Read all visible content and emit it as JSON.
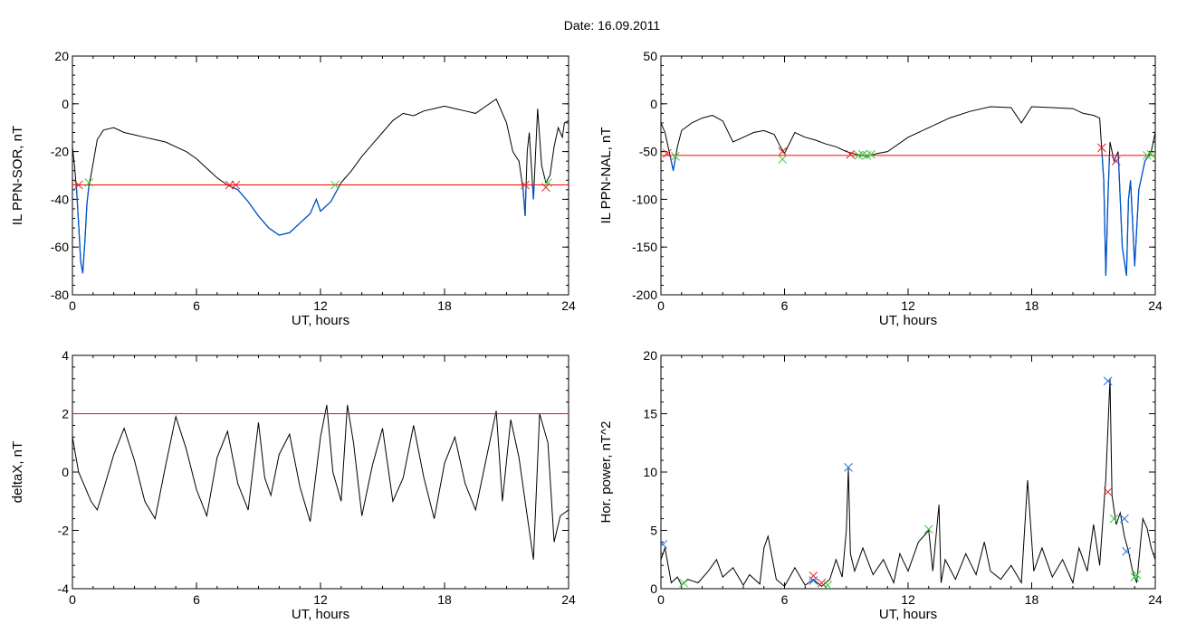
{
  "page_title": "Date:  16.09.2011",
  "colors": {
    "axis": "#000000",
    "line": "#000000",
    "threshold": "#ff0000",
    "below": "#0055cc",
    "marker_red": "#e02020",
    "marker_green": "#33cc33",
    "marker_blue": "#2277dd"
  },
  "chart_data": [
    {
      "id": "sor",
      "type": "line",
      "ylabel": "IL PPN-SOR, nT",
      "xlabel": "UT, hours",
      "xlim": [
        0,
        24
      ],
      "ylim": [
        -80,
        20
      ],
      "xticks": [
        0,
        6,
        12,
        18,
        24
      ],
      "yticks": [
        20,
        0,
        -20,
        -40,
        -60,
        -80
      ],
      "threshold": -34,
      "below_color": "#0055cc",
      "x": [
        0,
        0.1,
        0.2,
        0.3,
        0.4,
        0.5,
        0.6,
        0.7,
        0.8,
        0.9,
        1.0,
        1.2,
        1.5,
        2,
        2.5,
        3,
        3.5,
        4,
        4.5,
        5,
        5.5,
        6,
        6.5,
        7,
        7.5,
        8,
        8.5,
        9,
        9.5,
        10,
        10.5,
        11,
        11.5,
        11.8,
        12,
        12.5,
        13,
        13.5,
        14,
        14.5,
        15,
        15.5,
        16,
        16.5,
        17,
        17.5,
        18,
        18.5,
        19,
        19.5,
        20,
        20.5,
        21,
        21.3,
        21.6,
        21.8,
        21.9,
        22.0,
        22.1,
        22.3,
        22.5,
        22.7,
        22.9,
        23.1,
        23.3,
        23.5,
        23.7,
        23.8,
        24
      ],
      "y": [
        -18,
        -26,
        -36,
        -50,
        -66,
        -71,
        -58,
        -42,
        -34,
        -30,
        -25,
        -15,
        -11,
        -10,
        -12,
        -13,
        -14,
        -15,
        -16,
        -18,
        -20,
        -23,
        -27,
        -31,
        -34,
        -36,
        -41,
        -47,
        -52,
        -55,
        -54,
        -50,
        -46,
        -40,
        -45,
        -41,
        -33,
        -28,
        -22,
        -17,
        -12,
        -7,
        -4,
        -5,
        -3,
        -2,
        -1,
        -2,
        -3,
        -4,
        -1,
        2,
        -8,
        -20,
        -24,
        -36,
        -47,
        -20,
        -12,
        -40,
        -2,
        -26,
        -33,
        -30,
        -18,
        -10,
        -14,
        -8,
        -7
      ],
      "markers": [
        {
          "x": 0.3,
          "y": -34,
          "c": "red"
        },
        {
          "x": 0.8,
          "y": -33,
          "c": "green"
        },
        {
          "x": 7.6,
          "y": -34,
          "c": "red"
        },
        {
          "x": 7.9,
          "y": -34,
          "c": "red"
        },
        {
          "x": 12.7,
          "y": -34,
          "c": "green"
        },
        {
          "x": 21.9,
          "y": -34,
          "c": "red"
        },
        {
          "x": 22.9,
          "y": -35,
          "c": "red"
        },
        {
          "x": 23.0,
          "y": -33,
          "c": "green"
        }
      ]
    },
    {
      "id": "nal",
      "type": "line",
      "ylabel": "IL PPN-NAL, nT",
      "xlabel": "UT, hours",
      "xlim": [
        0,
        24
      ],
      "ylim": [
        -200,
        50
      ],
      "xticks": [
        0,
        6,
        12,
        18,
        24
      ],
      "yticks": [
        50,
        0,
        -50,
        -100,
        -150,
        -200
      ],
      "threshold": -54,
      "below_color": "#0055cc",
      "x": [
        0,
        0.2,
        0.4,
        0.6,
        0.8,
        1.0,
        1.5,
        2,
        2.5,
        3,
        3.5,
        4,
        4.5,
        5,
        5.5,
        5.8,
        6,
        6.5,
        7,
        7.5,
        8,
        8.5,
        9,
        9.5,
        10,
        10.5,
        11,
        12,
        13,
        14,
        15,
        16,
        17,
        17.5,
        18,
        19,
        20,
        20.5,
        21,
        21.3,
        21.5,
        21.6,
        21.7,
        21.8,
        22.0,
        22.2,
        22.4,
        22.6,
        22.7,
        22.8,
        23.0,
        23.2,
        23.5,
        23.8,
        24
      ],
      "y": [
        -20,
        -30,
        -50,
        -70,
        -45,
        -28,
        -20,
        -15,
        -12,
        -18,
        -40,
        -35,
        -30,
        -28,
        -32,
        -45,
        -52,
        -30,
        -35,
        -38,
        -42,
        -45,
        -50,
        -53,
        -55,
        -52,
        -50,
        -35,
        -25,
        -15,
        -8,
        -3,
        -4,
        -20,
        -3,
        -4,
        -5,
        -10,
        -12,
        -15,
        -80,
        -180,
        -100,
        -40,
        -60,
        -50,
        -150,
        -180,
        -100,
        -80,
        -170,
        -90,
        -60,
        -50,
        -30
      ],
      "markers": [
        {
          "x": 0.3,
          "y": -52,
          "c": "red"
        },
        {
          "x": 0.7,
          "y": -55,
          "c": "green"
        },
        {
          "x": 5.9,
          "y": -50,
          "c": "red"
        },
        {
          "x": 5.9,
          "y": -58,
          "c": "green"
        },
        {
          "x": 9.2,
          "y": -53,
          "c": "red"
        },
        {
          "x": 9.6,
          "y": -54,
          "c": "green"
        },
        {
          "x": 9.8,
          "y": -53,
          "c": "green"
        },
        {
          "x": 10.0,
          "y": -54,
          "c": "green"
        },
        {
          "x": 10.2,
          "y": -53,
          "c": "green"
        },
        {
          "x": 21.4,
          "y": -46,
          "c": "red"
        },
        {
          "x": 22.1,
          "y": -60,
          "c": "red"
        },
        {
          "x": 23.6,
          "y": -54,
          "c": "green"
        },
        {
          "x": 23.8,
          "y": -53,
          "c": "green"
        }
      ]
    },
    {
      "id": "deltax",
      "type": "line",
      "ylabel": "deltaX, nT",
      "xlabel": "UT, hours",
      "xlim": [
        0,
        24
      ],
      "ylim": [
        -4,
        4
      ],
      "xticks": [
        0,
        6,
        12,
        18,
        24
      ],
      "yticks": [
        4,
        2,
        0,
        -2,
        -4
      ],
      "threshold": 2,
      "below_color": null,
      "x": [
        0,
        0.3,
        0.6,
        0.9,
        1.2,
        1.5,
        2.0,
        2.5,
        3.0,
        3.5,
        4.0,
        4.5,
        5.0,
        5.5,
        6.0,
        6.5,
        7.0,
        7.5,
        8.0,
        8.5,
        9.0,
        9.3,
        9.6,
        10.0,
        10.5,
        11.0,
        11.5,
        12.0,
        12.3,
        12.6,
        13.0,
        13.3,
        13.6,
        14.0,
        14.5,
        15.0,
        15.5,
        16.0,
        16.5,
        17.0,
        17.5,
        18.0,
        18.5,
        19.0,
        19.5,
        20.0,
        20.5,
        20.8,
        21.2,
        21.6,
        22.0,
        22.3,
        22.6,
        23.0,
        23.3,
        23.6,
        24
      ],
      "y": [
        1.2,
        0,
        -0.5,
        -1.0,
        -1.3,
        -0.6,
        0.6,
        1.5,
        0.4,
        -1.0,
        -1.6,
        0.2,
        1.9,
        0.8,
        -0.6,
        -1.5,
        0.5,
        1.4,
        -0.4,
        -1.3,
        1.7,
        -0.2,
        -0.8,
        0.6,
        1.3,
        -0.5,
        -1.7,
        1.2,
        2.3,
        0,
        -1.0,
        2.3,
        1.0,
        -1.5,
        0.2,
        1.5,
        -1.0,
        -0.2,
        1.6,
        -0.2,
        -1.6,
        0.3,
        1.2,
        -0.4,
        -1.3,
        0.4,
        2.1,
        -1.0,
        1.8,
        0.5,
        -1.5,
        -3.0,
        2.0,
        1.0,
        -2.4,
        -1.5,
        -1.3
      ],
      "markers": []
    },
    {
      "id": "power",
      "type": "line",
      "ylabel": "Hor. power, nT^2",
      "xlabel": "UT, hours",
      "xlim": [
        0,
        24
      ],
      "ylim": [
        0,
        20
      ],
      "xticks": [
        0,
        6,
        12,
        18,
        24
      ],
      "yticks": [
        20,
        15,
        10,
        5,
        0
      ],
      "threshold": null,
      "below_color": null,
      "x": [
        0,
        0.2,
        0.5,
        0.8,
        1.0,
        1.3,
        1.8,
        2.3,
        2.7,
        3.0,
        3.5,
        4.0,
        4.3,
        4.8,
        5.0,
        5.2,
        5.6,
        6.0,
        6.5,
        7.0,
        7.4,
        7.8,
        8.2,
        8.5,
        8.8,
        9.0,
        9.1,
        9.2,
        9.4,
        9.8,
        10.3,
        10.8,
        11.3,
        11.6,
        12.0,
        12.5,
        13.0,
        13.2,
        13.5,
        13.6,
        13.8,
        14.3,
        14.8,
        15.3,
        15.7,
        16.0,
        16.5,
        17.0,
        17.5,
        17.8,
        18.1,
        18.5,
        19.0,
        19.5,
        20.0,
        20.3,
        20.7,
        21.0,
        21.3,
        21.6,
        21.8,
        21.9,
        22.1,
        22.3,
        22.5,
        22.7,
        22.9,
        23.1,
        23.4,
        23.6,
        23.8,
        24
      ],
      "y": [
        2.5,
        3.5,
        0.5,
        1.0,
        0.3,
        0.8,
        0.5,
        1.5,
        2.5,
        1.0,
        1.8,
        0.3,
        1.2,
        0.4,
        3.5,
        4.5,
        0.8,
        0.2,
        1.8,
        0.3,
        0.8,
        0.2,
        0.8,
        2.5,
        1.0,
        5.0,
        10.3,
        3.0,
        1.5,
        3.5,
        1.2,
        2.5,
        0.5,
        3.0,
        1.5,
        4.0,
        5.0,
        1.5,
        7.2,
        0.5,
        2.5,
        0.8,
        3.0,
        1.2,
        4.0,
        1.5,
        0.8,
        2.0,
        0.5,
        9.3,
        1.5,
        3.5,
        1.0,
        2.5,
        0.5,
        3.5,
        1.5,
        5.5,
        2.0,
        9.5,
        18.0,
        8.0,
        5.5,
        6.5,
        4.5,
        3.2,
        1.5,
        0.5,
        6.0,
        5.2,
        3.5,
        2.5
      ],
      "markers": [
        {
          "x": 0.1,
          "y": 3.8,
          "c": "blue"
        },
        {
          "x": 1.1,
          "y": 0.5,
          "c": "green"
        },
        {
          "x": 7.4,
          "y": 1.1,
          "c": "red"
        },
        {
          "x": 7.4,
          "y": 0.7,
          "c": "blue"
        },
        {
          "x": 7.8,
          "y": 0.5,
          "c": "red"
        },
        {
          "x": 8.1,
          "y": 0.3,
          "c": "green"
        },
        {
          "x": 9.1,
          "y": 10.4,
          "c": "blue"
        },
        {
          "x": 13.0,
          "y": 5.1,
          "c": "green"
        },
        {
          "x": 21.7,
          "y": 17.8,
          "c": "blue"
        },
        {
          "x": 21.7,
          "y": 8.3,
          "c": "red"
        },
        {
          "x": 22.0,
          "y": 6.0,
          "c": "green"
        },
        {
          "x": 22.5,
          "y": 6.0,
          "c": "blue"
        },
        {
          "x": 22.6,
          "y": 3.2,
          "c": "blue"
        },
        {
          "x": 23.0,
          "y": 1.0,
          "c": "green"
        },
        {
          "x": 23.1,
          "y": 1.2,
          "c": "green"
        }
      ]
    }
  ]
}
